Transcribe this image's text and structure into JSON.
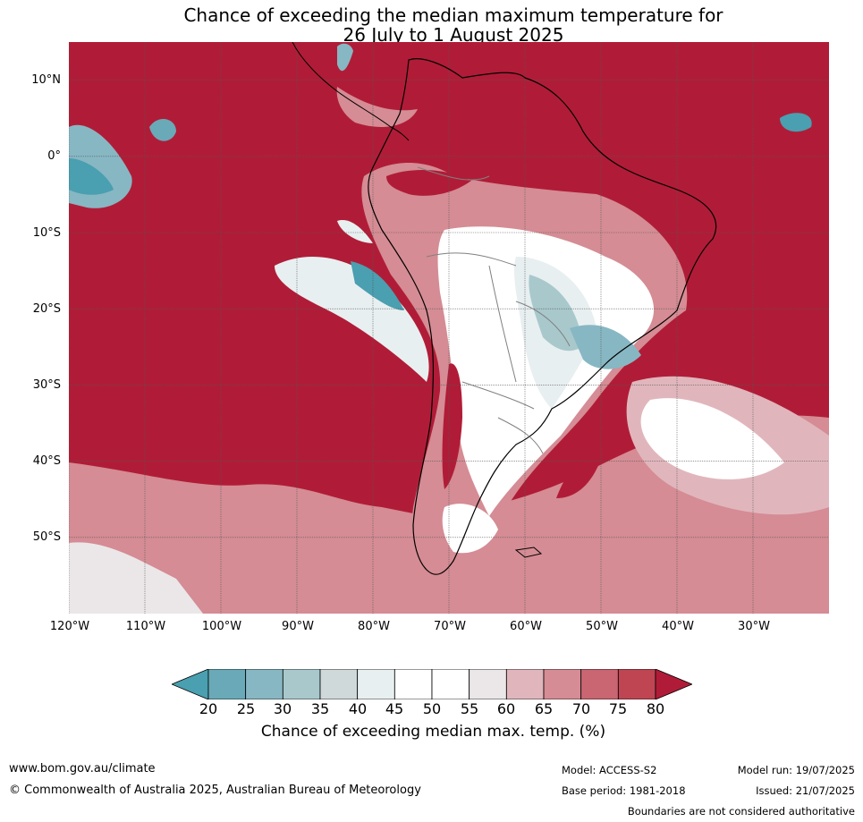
{
  "title": {
    "line1": "Chance of exceeding the median maximum temperature for",
    "line2": "26 July to 1 August 2025"
  },
  "axes": {
    "lat_labels": [
      "10°N",
      "0°",
      "10°S",
      "20°S",
      "30°S",
      "40°S",
      "50°S"
    ],
    "lat_values": [
      10,
      0,
      -10,
      -20,
      -30,
      -40,
      -50
    ],
    "lon_labels": [
      "120°W",
      "110°W",
      "100°W",
      "90°W",
      "80°W",
      "70°W",
      "60°W",
      "50°W",
      "40°W",
      "30°W"
    ],
    "lon_values": [
      -120,
      -110,
      -100,
      -90,
      -80,
      -70,
      -60,
      -50,
      -40,
      -30
    ],
    "lat_range": [
      -60,
      15
    ],
    "lon_range": [
      -120,
      -20
    ],
    "grid": true
  },
  "colorbar": {
    "ticks": [
      "20",
      "25",
      "30",
      "35",
      "40",
      "45",
      "50",
      "55",
      "60",
      "65",
      "70",
      "75",
      "80"
    ],
    "colors": [
      "#4a9fb0",
      "#6aa9b7",
      "#87b7c3",
      "#a8c8cc",
      "#d0d9da",
      "#e8eff0",
      "#ffffff",
      "#ffffff",
      "#ebe7e8",
      "#e0b6bc",
      "#d58c94",
      "#c96671",
      "#bf4553",
      "#b01c37"
    ],
    "extend": "both",
    "label": "Chance of exceeding median max. temp. (%)"
  },
  "colors": {
    "ocean_high": "#b01c37",
    "grid": "#555555",
    "coast": "#000000",
    "border": "#808080"
  },
  "footer": {
    "url": "www.bom.gov.au/climate",
    "copyright": "© Commonwealth of Australia 2025, Australian Bureau of Meteorology",
    "model": "Model: ACCESS-S2",
    "model_run": "Model run: 19/07/2025",
    "base_period": "Base period: 1981-2018",
    "issued": "Issued: 21/07/2025",
    "disclaimer": "Boundaries are not considered authoritative"
  }
}
